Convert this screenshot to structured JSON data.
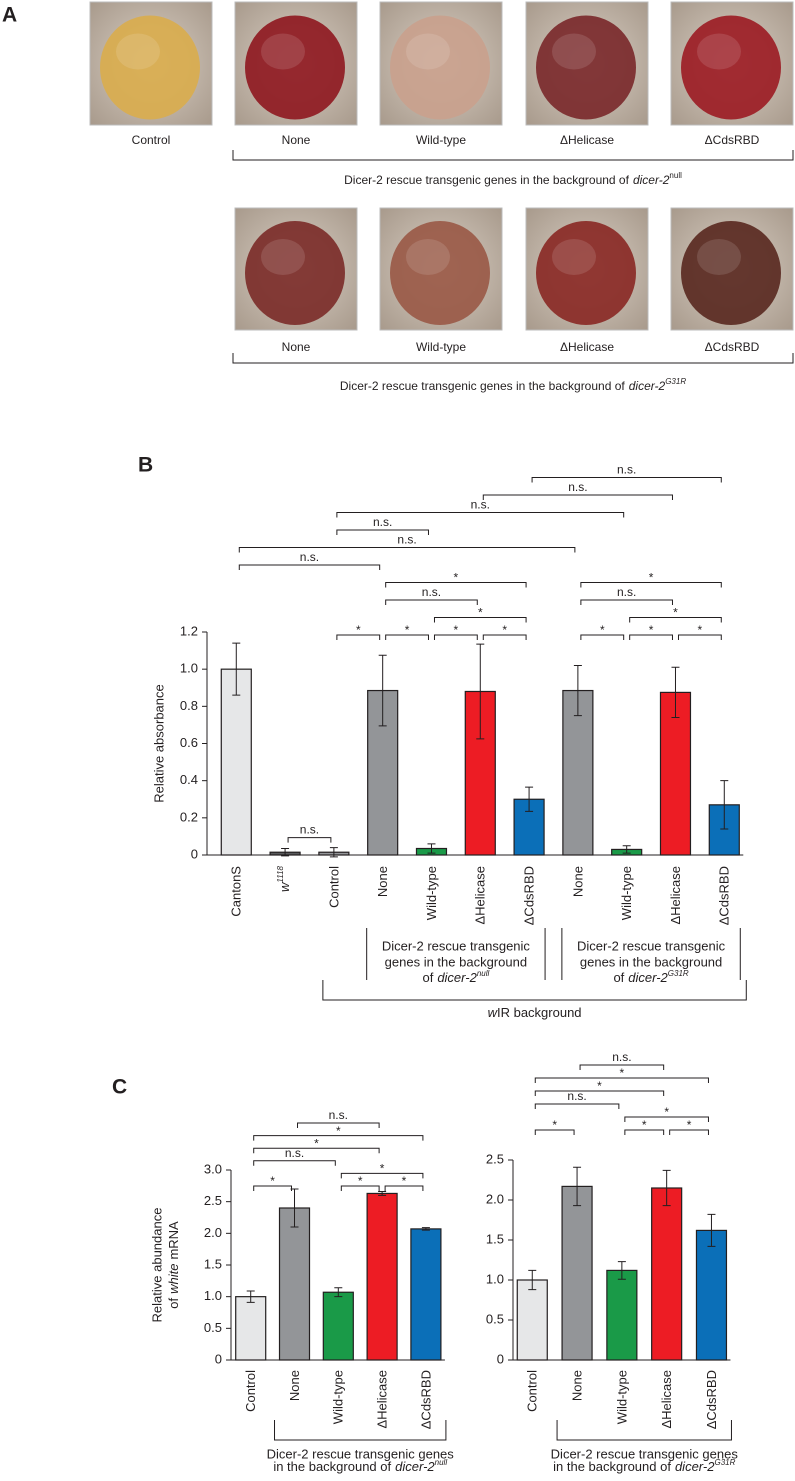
{
  "panel_a": {
    "letter": "A",
    "row1": {
      "labels": [
        "Control",
        "None",
        "Wild-type",
        "ΔHelicase",
        "ΔCdsRBD"
      ],
      "caption": {
        "text": "Dicer-2 rescue transgenic genes in the background of",
        "gene": "dicer-2",
        "sup": "null",
        "sup_italic": false
      }
    },
    "row2": {
      "labels": [
        "None",
        "Wild-type",
        "ΔHelicase",
        "ΔCdsRBD"
      ],
      "caption": {
        "text": "Dicer-2 rescue transgenic genes in the background of",
        "gene": "dicer-2",
        "sup": "G31R",
        "sup_italic": true
      }
    }
  },
  "chart_data": [
    {
      "type": "bar",
      "panel": "B",
      "ylabel": "Relative absorbance",
      "categories": [
        "CantonS",
        {
          "name": "w",
          "sup": "1118"
        },
        "Control",
        "None",
        "Wild-type",
        "ΔHelicase",
        "ΔCdsRBD",
        "None",
        "Wild-type",
        "ΔHelicase",
        "ΔCdsRBD"
      ],
      "values": [
        1.0,
        0.015,
        0.015,
        0.885,
        0.035,
        0.88,
        0.3,
        0.885,
        0.03,
        0.875,
        0.27
      ],
      "errors": [
        0.14,
        0.02,
        0.025,
        0.19,
        0.025,
        0.255,
        0.065,
        0.135,
        0.02,
        0.135,
        0.13
      ],
      "colors": [
        "#e6e7e8",
        "#58595b",
        "#939598",
        "#939598",
        "#1a9a48",
        "#ed1c24",
        "#0b6fb8",
        "#939598",
        "#1a9a48",
        "#ed1c24",
        "#0b6fb8"
      ],
      "ylim": [
        0,
        1.2
      ],
      "yticks": [
        0,
        0.2,
        0.4,
        0.6,
        0.8,
        {
          "value": 1,
          "label": "1.0"
        },
        1.2
      ],
      "near_bar_comparisons": [
        {
          "between": [
            1,
            2
          ],
          "label": "n.s."
        }
      ],
      "comparison_rows": [
        [
          {
            "between": [
              2,
              3
            ],
            "label": "*"
          },
          {
            "between": [
              3,
              4
            ],
            "label": "*"
          },
          {
            "between": [
              4,
              5
            ],
            "label": "*"
          },
          {
            "between": [
              5,
              6
            ],
            "label": "*"
          },
          {
            "between": [
              7,
              8
            ],
            "label": "*"
          },
          {
            "between": [
              8,
              9
            ],
            "label": "*"
          },
          {
            "between": [
              9,
              10
            ],
            "label": "*"
          }
        ],
        [
          {
            "between": [
              4,
              6
            ],
            "label": "*"
          },
          {
            "between": [
              8,
              10
            ],
            "label": "*"
          }
        ],
        [
          {
            "between": [
              3,
              5
            ],
            "label": "n.s."
          },
          {
            "between": [
              7,
              9
            ],
            "label": "n.s."
          }
        ],
        [
          {
            "between": [
              3,
              6
            ],
            "label": "*"
          },
          {
            "between": [
              7,
              10
            ],
            "label": "*"
          }
        ],
        [
          {
            "between": [
              0,
              3
            ],
            "label": "n.s."
          }
        ],
        [
          {
            "between": [
              0,
              7
            ],
            "label": "n.s."
          }
        ],
        [
          {
            "between": [
              2,
              4
            ],
            "label": "n.s."
          }
        ],
        [
          {
            "between": [
              2,
              8
            ],
            "label": "n.s."
          }
        ],
        [
          {
            "between": [
              5,
              9
            ],
            "label": "n.s."
          }
        ],
        [
          {
            "between": [
              6,
              10
            ],
            "label": "n.s."
          }
        ]
      ],
      "groups": [
        {
          "between": [
            3,
            6
          ],
          "lines": [
            "Dicer-2 rescue transgenic",
            "genes in the background"
          ],
          "prefix": "of",
          "gene": "dicer-2",
          "sup": "null"
        },
        {
          "between": [
            7,
            10
          ],
          "lines": [
            "Dicer-2 rescue transgenic",
            "genes in the background"
          ],
          "prefix": "of",
          "gene": "dicer-2",
          "sup": "G31R"
        }
      ],
      "outer_group": {
        "between": [
          2,
          10
        ],
        "gene": "w",
        "text": "IR background"
      }
    },
    {
      "type": "bar",
      "panel": "C",
      "ylabel": {
        "lines": [
          "Relative abundance"
        ],
        "prefix": "of",
        "italic": "white",
        "suffix": "mRNA"
      },
      "categories": [
        "Control",
        "None",
        "Wild-type",
        "ΔHelicase",
        "ΔCdsRBD"
      ],
      "values": [
        1.0,
        2.4,
        1.07,
        2.63,
        2.07
      ],
      "errors": [
        0.09,
        0.3,
        0.07,
        0.03,
        0.02
      ],
      "colors": [
        "#e6e7e8",
        "#939598",
        "#1a9a48",
        "#ed1c24",
        "#0b6fb8"
      ],
      "ylim": [
        0,
        3
      ],
      "yticks": [
        0,
        0.5,
        {
          "value": 1,
          "label": "1.0"
        },
        1.5,
        {
          "value": 2,
          "label": "2.0"
        },
        2.5,
        {
          "value": 3,
          "label": "3.0"
        }
      ],
      "comparison_rows": [
        [
          {
            "between": [
              0,
              1
            ],
            "label": "*"
          },
          {
            "between": [
              2,
              3
            ],
            "label": "*"
          },
          {
            "between": [
              3,
              4
            ],
            "label": "*"
          }
        ],
        [
          {
            "between": [
              2,
              4
            ],
            "label": "*"
          }
        ],
        [
          {
            "between": [
              0,
              2
            ],
            "label": "n.s."
          }
        ],
        [
          {
            "between": [
              0,
              3
            ],
            "label": "*"
          }
        ],
        [
          {
            "between": [
              0,
              4
            ],
            "label": "*"
          }
        ],
        [
          {
            "between": [
              1,
              3
            ],
            "label": "n.s."
          }
        ]
      ],
      "groups": [
        {
          "between": [
            1,
            4
          ],
          "lines": [
            "Dicer-2 rescue transgenic genes"
          ],
          "prefix": "in the background of",
          "gene": "dicer-2",
          "sup": "null"
        }
      ]
    },
    {
      "type": "bar",
      "categories": [
        "Control",
        "None",
        "Wild-type",
        "ΔHelicase",
        "ΔCdsRBD"
      ],
      "values": [
        1.0,
        2.17,
        1.12,
        2.15,
        1.62
      ],
      "errors": [
        0.12,
        0.24,
        0.11,
        0.22,
        0.2
      ],
      "colors": [
        "#e6e7e8",
        "#939598",
        "#1a9a48",
        "#ed1c24",
        "#0b6fb8"
      ],
      "ylim": [
        0,
        2.5
      ],
      "yticks": [
        0,
        0.5,
        {
          "value": 1,
          "label": "1.0"
        },
        1.5,
        {
          "value": 2,
          "label": "2.0"
        },
        2.5
      ],
      "comparison_rows": [
        [
          {
            "between": [
              0,
              1
            ],
            "label": "*"
          },
          {
            "between": [
              2,
              3
            ],
            "label": "*"
          },
          {
            "between": [
              3,
              4
            ],
            "label": "*"
          }
        ],
        [
          {
            "between": [
              2,
              4
            ],
            "label": "*"
          }
        ],
        [
          {
            "between": [
              0,
              2
            ],
            "label": "n.s."
          }
        ],
        [
          {
            "between": [
              0,
              3
            ],
            "label": "*"
          }
        ],
        [
          {
            "between": [
              0,
              4
            ],
            "label": "*"
          }
        ],
        [
          {
            "between": [
              1,
              3
            ],
            "label": "n.s."
          }
        ]
      ],
      "groups": [
        {
          "between": [
            1,
            4
          ],
          "lines": [
            "Dicer-2 rescue transgenic genes"
          ],
          "prefix": "in the background of",
          "gene": "dicer-2",
          "sup": "G31R"
        }
      ]
    }
  ]
}
